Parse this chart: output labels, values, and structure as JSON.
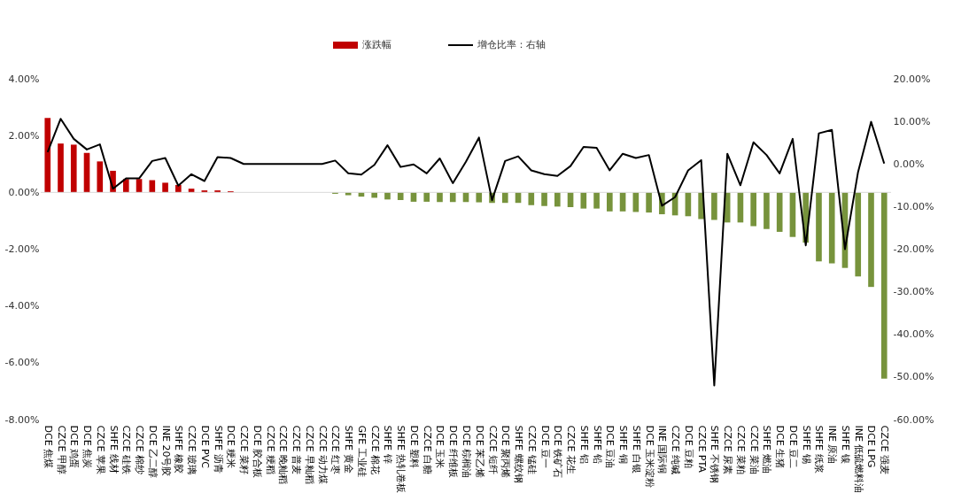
{
  "chart_data": {
    "type": "bar",
    "categories": [
      "DCE 焦煤",
      "CZCE 甲醇",
      "DCE 鸡蛋",
      "DCE 焦炭",
      "CZCE 苹果",
      "SHFE 线材",
      "CZCE 硅铁",
      "CZCE 棉纱",
      "DCE 乙二醇",
      "INE 20号胶",
      "SHFE 橡胶",
      "CZCE 玻璃",
      "DCE PVC",
      "SHFE 沥青",
      "DCE 粳米",
      "CZCE 菜籽",
      "DCE 胶合板",
      "CZCE 粳稻",
      "CZCE 晚籼稻",
      "CZCE 普麦",
      "CZCE 早籼稻",
      "CZCE 动力煤",
      "CZCE 红枣",
      "SHFE 黄金",
      "GFE 工业硅",
      "CZCE 棉花",
      "SHFE 锌",
      "SHFE 热轧卷板",
      "DCE 塑料",
      "CZCE 白糖",
      "DCE 玉米",
      "DCE 纤维板",
      "DCE 棕榈油",
      "DCE 苯乙烯",
      "CZCE 短纤",
      "DCE 聚丙烯",
      "SHFE 螺纹钢",
      "CZCE 锰硅",
      "DCE 豆一",
      "DCE 铁矿石",
      "CZCE 花生",
      "SHFE 铝",
      "SHFE 铅",
      "DCE 豆油",
      "SHFE 铜",
      "SHFE 白银",
      "DCE 玉米淀粉",
      "INE 国际铜",
      "CZCE 纯碱",
      "DCE 豆粕",
      "CZCE PTA",
      "SHFE 不锈钢",
      "CZCE 尿素",
      "CZCE 菜粕",
      "CZCE 菜油",
      "SHFE 燃油",
      "DCE 生猪",
      "DCE 豆二",
      "SHFE 锡",
      "SHFE 纸浆",
      "INE 原油",
      "SHFE 镍",
      "INE 低硫燃料油",
      "DCE LPG",
      "CZCE 强麦"
    ],
    "series": [
      {
        "name": "涨跌幅",
        "color": "#c00000",
        "colors": [
          "#c00000",
          "#c00000",
          "#c00000",
          "#c00000",
          "#c00000",
          "#c00000",
          "#c00000",
          "#c00000",
          "#c00000",
          "#c00000",
          "#c00000",
          "#c00000",
          "#c00000",
          "#c00000",
          "#c00000",
          "#c00000",
          "#c00000",
          "#c00000",
          "#c00000",
          "#c00000",
          "#c00000",
          "#c00000",
          "#77933c",
          "#77933c",
          "#77933c",
          "#77933c",
          "#77933c",
          "#77933c",
          "#77933c",
          "#77933c",
          "#77933c",
          "#77933c",
          "#77933c",
          "#77933c",
          "#77933c",
          "#77933c",
          "#77933c",
          "#77933c",
          "#77933c",
          "#77933c",
          "#77933c",
          "#77933c",
          "#77933c",
          "#77933c",
          "#77933c",
          "#77933c",
          "#77933c",
          "#77933c",
          "#77933c",
          "#77933c",
          "#77933c",
          "#77933c",
          "#77933c",
          "#77933c",
          "#77933c",
          "#77933c",
          "#77933c",
          "#77933c",
          "#77933c",
          "#77933c",
          "#77933c",
          "#77933c",
          "#77933c",
          "#77933c",
          "#77933c"
        ],
        "values": [
          2.62,
          1.72,
          1.68,
          1.39,
          1.09,
          0.76,
          0.47,
          0.47,
          0.43,
          0.34,
          0.26,
          0.13,
          0.07,
          0.07,
          0.04,
          0,
          0,
          0,
          0,
          0,
          0,
          0,
          -0.05,
          -0.1,
          -0.15,
          -0.19,
          -0.25,
          -0.27,
          -0.33,
          -0.33,
          -0.34,
          -0.34,
          -0.34,
          -0.35,
          -0.37,
          -0.37,
          -0.37,
          -0.45,
          -0.48,
          -0.5,
          -0.52,
          -0.57,
          -0.57,
          -0.67,
          -0.67,
          -0.69,
          -0.71,
          -0.77,
          -0.81,
          -0.84,
          -0.94,
          -0.97,
          -1.06,
          -1.06,
          -1.19,
          -1.29,
          -1.39,
          -1.57,
          -1.77,
          -2.43,
          -2.5,
          -2.66,
          -2.96,
          -3.33,
          -6.56
        ]
      },
      {
        "name": "增仓比率：右轴",
        "type": "line",
        "axis": "y2",
        "color": "#000000",
        "values": [
          2.8,
          10.6,
          5.9,
          3.4,
          4.6,
          -5.8,
          -3.4,
          -3.4,
          0.7,
          1.4,
          -5.1,
          -2.4,
          -4.0,
          1.6,
          1.4,
          0,
          0,
          0,
          0,
          0,
          0,
          0,
          0.8,
          -2.2,
          -2.5,
          -0.2,
          4.4,
          -0.7,
          -0.1,
          -2.2,
          1.3,
          -4.5,
          0.5,
          6.2,
          -8.5,
          0.7,
          1.8,
          -1.5,
          -2.4,
          -2.8,
          -0.5,
          4.0,
          3.8,
          -1.5,
          2.4,
          1.4,
          2.1,
          -9.8,
          -7.8,
          -1.5,
          0.9,
          -52.0,
          2.4,
          -5.0,
          5.1,
          2.1,
          -2.2,
          5.9,
          -19.1,
          7.2,
          8.0,
          -20.0,
          -1.9,
          9.9,
          0.1
        ]
      }
    ],
    "ylim": [
      -8,
      4
    ],
    "yticks": [
      {
        "value": -8,
        "label": "-8.00%"
      },
      {
        "value": -6,
        "label": "-6.00%"
      },
      {
        "value": -4,
        "label": "-4.00%"
      },
      {
        "value": -2,
        "label": "-2.00%"
      },
      {
        "value": 0,
        "label": "0.00%"
      },
      {
        "value": 2,
        "label": "2.00%"
      },
      {
        "value": 4,
        "label": "4.00%"
      }
    ],
    "y2lim": [
      -60,
      20
    ],
    "y2ticks": [
      {
        "value": -60,
        "label": "-60.00%"
      },
      {
        "value": -50,
        "label": "-50.00%"
      },
      {
        "value": -40,
        "label": "-40.00%"
      },
      {
        "value": -30,
        "label": "-30.00%"
      },
      {
        "value": -20,
        "label": "-20.00%"
      },
      {
        "value": -10,
        "label": "-10.00%"
      },
      {
        "value": 0,
        "label": "0.00%"
      },
      {
        "value": 10,
        "label": "10.00%"
      },
      {
        "value": 20,
        "label": "20.00%"
      }
    ],
    "ref_lines": [
      {
        "axis": "y",
        "value": 0,
        "color": "#d9d9d9"
      }
    ],
    "legend": "top",
    "grid": false,
    "marker": "none",
    "line_style": "solid"
  }
}
